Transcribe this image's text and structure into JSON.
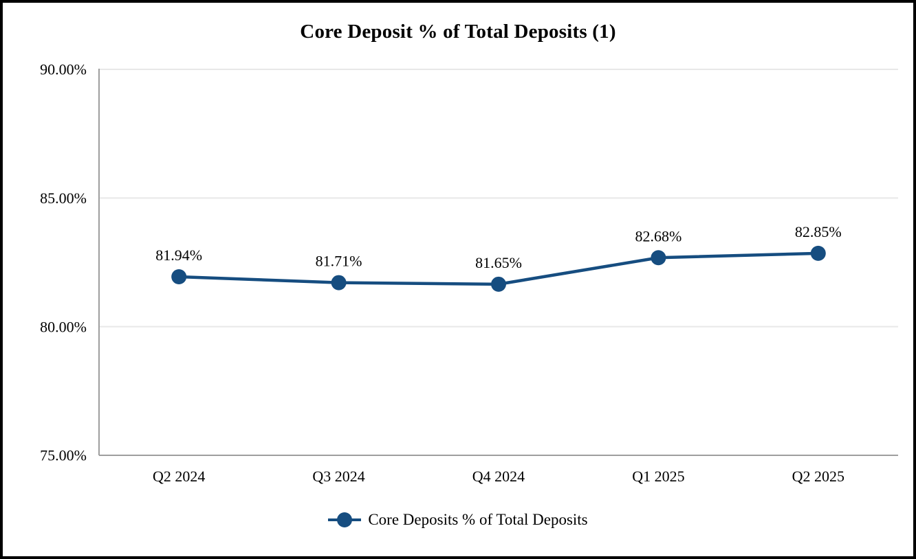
{
  "chart_data": {
    "type": "line",
    "title": "Core Deposit % of Total Deposits (1)",
    "categories": [
      "Q2 2024",
      "Q3 2024",
      "Q4 2024",
      "Q1 2025",
      "Q2 2025"
    ],
    "series": [
      {
        "name": "Core Deposits % of Total Deposits",
        "values": [
          81.94,
          81.71,
          81.65,
          82.68,
          82.85
        ],
        "point_labels": [
          "81.94%",
          "81.71%",
          "81.65%",
          "82.68%",
          "82.85%"
        ]
      }
    ],
    "xlabel": "",
    "ylabel": "",
    "ylim": [
      75,
      90
    ],
    "yticks": [
      75,
      80,
      85,
      90
    ],
    "ytick_labels": [
      "75.00%",
      "80.00%",
      "85.00%",
      "90.00%"
    ],
    "grid": true,
    "legend_position": "bottom",
    "colors": {
      "line": "#164D80",
      "grid": "#E8E8E8",
      "axis": "#9E9E9E",
      "text": "#000000"
    }
  }
}
